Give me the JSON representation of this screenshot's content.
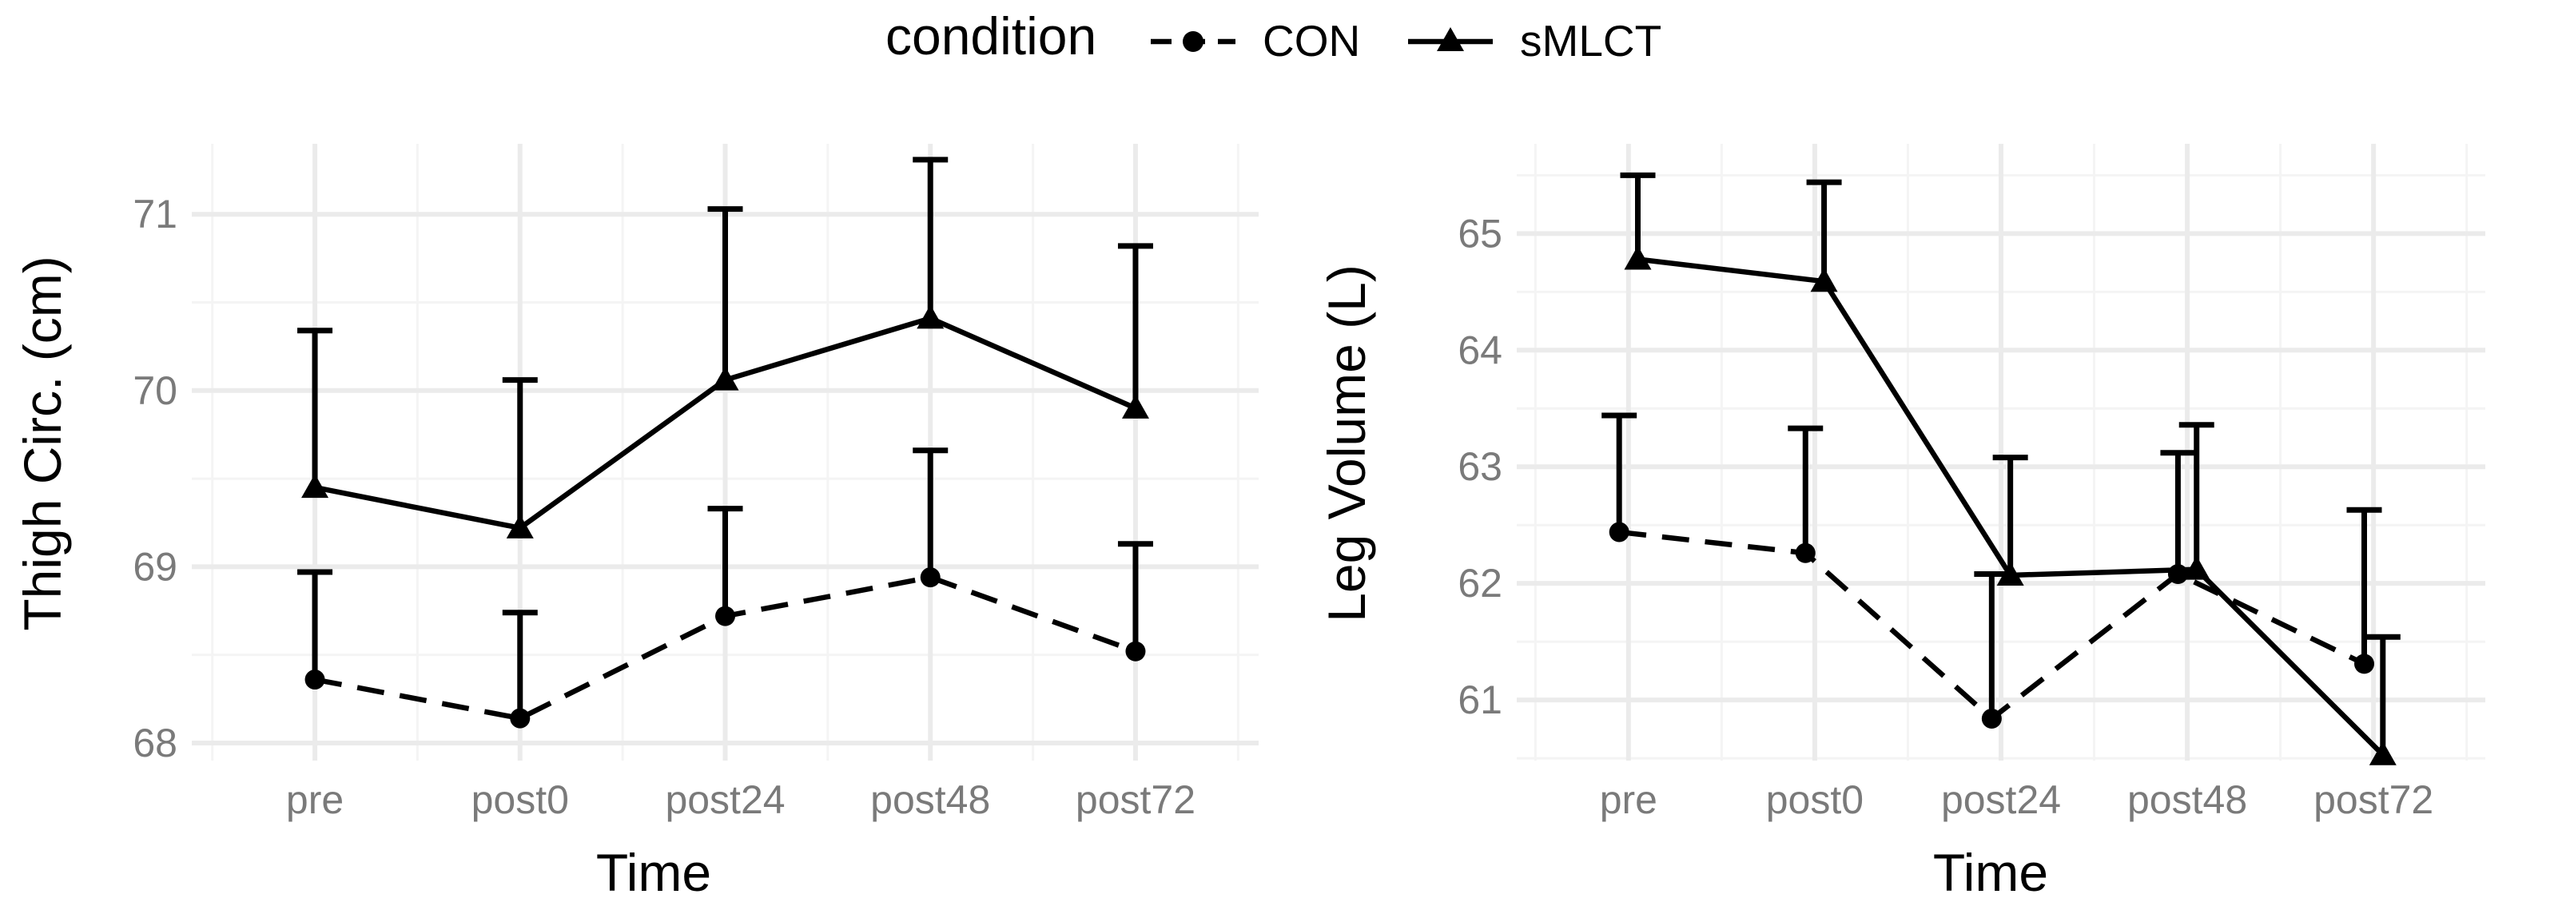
{
  "legend": {
    "title": "condition",
    "items": [
      {
        "label": "CON",
        "shape": "circle",
        "linetype": "dashed"
      },
      {
        "label": "sMLCT",
        "shape": "triangle",
        "linetype": "solid"
      }
    ]
  },
  "chart_data": [
    {
      "type": "line",
      "title": "",
      "xlabel": "Time",
      "ylabel": "Thigh Circ. (cm)",
      "categories": [
        "pre",
        "post0",
        "post24",
        "post48",
        "post72"
      ],
      "ylim": [
        67.9,
        71.4
      ],
      "yticks": [
        68,
        69,
        70,
        71
      ],
      "grid": true,
      "dodge": 0,
      "series": [
        {
          "name": "CON",
          "values": [
            68.36,
            68.14,
            68.72,
            68.94,
            68.52
          ],
          "error_upper": [
            68.97,
            68.74,
            69.33,
            69.66,
            69.13
          ]
        },
        {
          "name": "sMLCT",
          "values": [
            69.45,
            69.22,
            70.06,
            70.41,
            69.9
          ],
          "error_upper": [
            70.34,
            70.06,
            71.03,
            71.31,
            70.82
          ]
        }
      ]
    },
    {
      "type": "line",
      "title": "",
      "xlabel": "Time",
      "ylabel": "Leg Volume (L)",
      "categories": [
        "pre",
        "post0",
        "post24",
        "post48",
        "post72"
      ],
      "ylim": [
        60.48,
        65.77
      ],
      "yticks": [
        61,
        62,
        63,
        64,
        65
      ],
      "grid": true,
      "dodge": 0.05,
      "series": [
        {
          "name": "CON",
          "values": [
            62.44,
            62.26,
            60.84,
            62.08,
            61.31
          ],
          "error_upper": [
            63.44,
            63.33,
            62.08,
            63.12,
            62.63
          ]
        },
        {
          "name": "sMLCT",
          "values": [
            64.78,
            64.59,
            62.07,
            62.12,
            60.53
          ],
          "error_upper": [
            65.5,
            65.44,
            63.08,
            63.36,
            61.54
          ]
        }
      ]
    }
  ]
}
